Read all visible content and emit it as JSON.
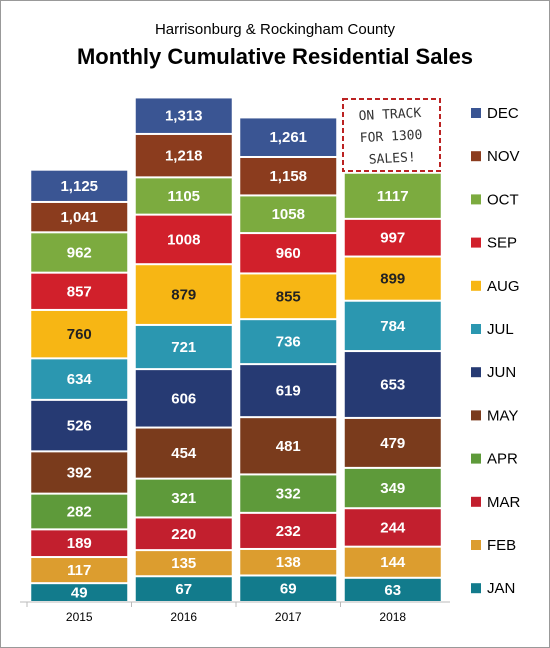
{
  "chart_data": {
    "type": "bar",
    "title": "Monthly Cumulative Residential Sales",
    "subtitle": "Harrisonburg & Rockingham County",
    "annotation": [
      "ON TRACK",
      "FOR 1300",
      "SALES!"
    ],
    "categories": [
      "2015",
      "2016",
      "2017",
      "2018"
    ],
    "ylim": [
      0,
      1400
    ],
    "series": [
      {
        "name": "JAN",
        "color": "#127b8c",
        "values": [
          49,
          67,
          69,
          63
        ]
      },
      {
        "name": "FEB",
        "color": "#dc9d2f",
        "values": [
          117,
          135,
          138,
          144
        ]
      },
      {
        "name": "MAR",
        "color": "#c21f2e",
        "values": [
          189,
          220,
          232,
          244
        ]
      },
      {
        "name": "APR",
        "color": "#5e9a3a",
        "values": [
          282,
          321,
          332,
          349
        ]
      },
      {
        "name": "MAY",
        "color": "#7a3b1c",
        "values": [
          392,
          454,
          481,
          479
        ]
      },
      {
        "name": "JUN",
        "color": "#263a73",
        "values": [
          526,
          606,
          619,
          653
        ]
      },
      {
        "name": "JUL",
        "color": "#2b97b0",
        "values": [
          634,
          721,
          736,
          784
        ]
      },
      {
        "name": "AUG",
        "color": "#f7b614",
        "values": [
          760,
          879,
          855,
          899
        ]
      },
      {
        "name": "SEP",
        "color": "#d1202b",
        "values": [
          857,
          1008,
          960,
          997
        ]
      },
      {
        "name": "OCT",
        "color": "#7cab3f",
        "values": [
          962,
          1105,
          1058,
          1117
        ]
      },
      {
        "name": "NOV",
        "color": "#8b3c1e",
        "values": [
          1041,
          1218,
          1158,
          null
        ],
        "value_labels": [
          "1,041",
          "1,218",
          "1,158",
          null
        ]
      },
      {
        "name": "DEC",
        "color": "#3a5593",
        "values": [
          1125,
          1313,
          1261,
          null
        ],
        "value_labels": [
          "1,125",
          "1,313",
          "1,261",
          null
        ]
      }
    ]
  }
}
